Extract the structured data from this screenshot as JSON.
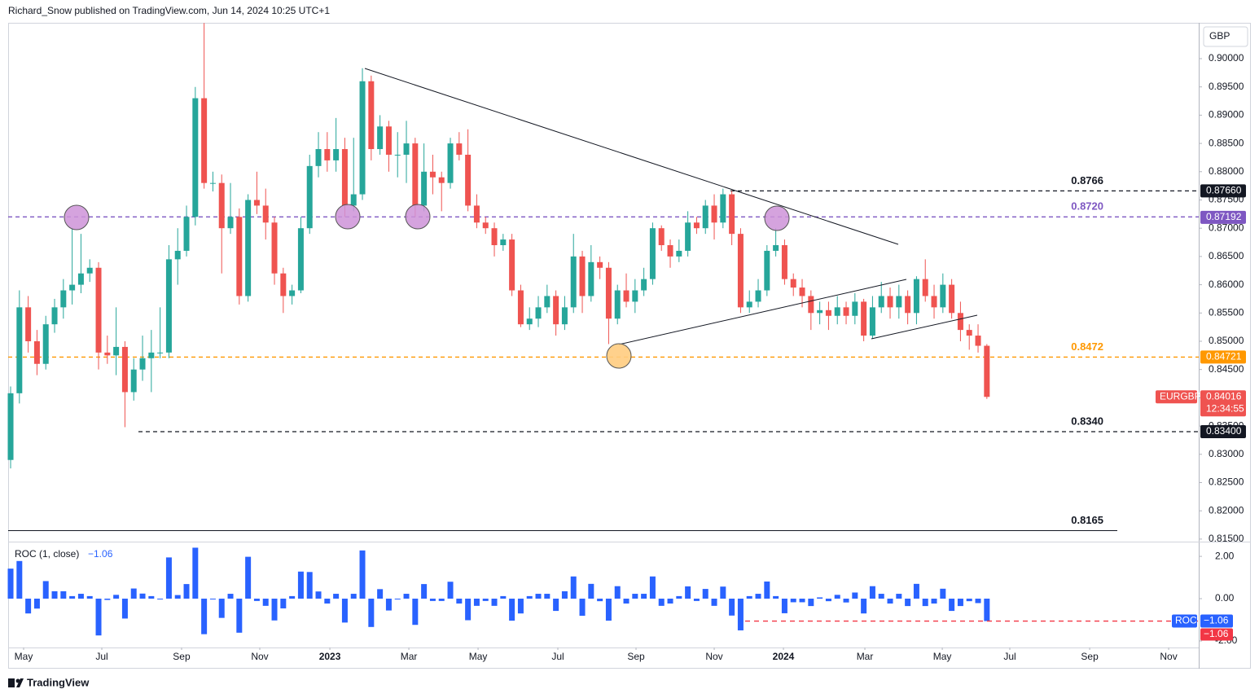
{
  "header": "Richard_Snow published on TradingView.com, Jun 14, 2024 10:25 UTC+1",
  "footer": "TradingView",
  "chart_data": [
    {
      "type": "candlestick",
      "currency": "GBP",
      "symbol": "EURGBP",
      "countdown": "12:34:55",
      "up_color": "#26a69a",
      "down_color": "#ef5350",
      "xlim": [
        -0.28,
        135.09
      ],
      "xticks": [
        {
          "value": 1.48,
          "label": "May"
        },
        {
          "value": 10.37,
          "label": "Jul"
        },
        {
          "value": 19.44,
          "label": "Sep"
        },
        {
          "value": 28.33,
          "label": "Nov"
        },
        {
          "value": 36.3,
          "label": "2023"
        },
        {
          "value": 45.28,
          "label": "Mar"
        },
        {
          "value": 53.15,
          "label": "May"
        },
        {
          "value": 62.22,
          "label": "Jul"
        },
        {
          "value": 71.11,
          "label": "Sep"
        },
        {
          "value": 80,
          "label": "Nov"
        },
        {
          "value": 87.87,
          "label": "2024"
        },
        {
          "value": 97.13,
          "label": "Mar"
        },
        {
          "value": 105.93,
          "label": "May"
        },
        {
          "value": 113.61,
          "label": "Jul"
        },
        {
          "value": 122.69,
          "label": "Sep"
        },
        {
          "value": 131.67,
          "label": "Nov"
        }
      ],
      "ylim": [
        0.81455,
        0.90634
      ],
      "yticks": [
        {
          "value": 0.9,
          "label": "0.90000"
        },
        {
          "value": 0.895,
          "label": "0.89500"
        },
        {
          "value": 0.89,
          "label": "0.89000"
        },
        {
          "value": 0.885,
          "label": "0.88500"
        },
        {
          "value": 0.88,
          "label": "0.88000"
        },
        {
          "value": 0.875,
          "label": "0.87500"
        },
        {
          "value": 0.87,
          "label": "0.87000"
        },
        {
          "value": 0.865,
          "label": "0.86500"
        },
        {
          "value": 0.86,
          "label": "0.86000"
        },
        {
          "value": 0.855,
          "label": "0.85500"
        },
        {
          "value": 0.85,
          "label": "0.85000"
        },
        {
          "value": 0.845,
          "label": "0.84500"
        },
        {
          "value": 0.84,
          "label": "0.84000"
        },
        {
          "value": 0.835,
          "label": "0.83500"
        },
        {
          "value": 0.83,
          "label": "0.83000"
        },
        {
          "value": 0.825,
          "label": "0.82500"
        },
        {
          "value": 0.82,
          "label": "0.82000"
        },
        {
          "value": 0.815,
          "label": "0.81500"
        }
      ],
      "open": [
        0.829,
        0.8408,
        0.856,
        0.85,
        0.846,
        0.853,
        0.856,
        0.859,
        0.86,
        0.862,
        0.863,
        0.848,
        0.8475,
        0.849,
        0.841,
        0.845,
        0.847,
        0.848,
        0.848,
        0.8645,
        0.866,
        0.872,
        0.893,
        0.878,
        0.878,
        0.87,
        0.872,
        0.858,
        0.875,
        0.874,
        0.871,
        0.862,
        0.858,
        0.859,
        0.87,
        0.881,
        0.884,
        0.882,
        0.884,
        0.874,
        0.876,
        0.896,
        0.884,
        0.888,
        0.883,
        0.883,
        0.885,
        0.874,
        0.88,
        0.879,
        0.878,
        0.885,
        0.883,
        0.874,
        0.871,
        0.87,
        0.867,
        0.868,
        0.859,
        0.853,
        0.854,
        0.856,
        0.858,
        0.853,
        0.856,
        0.865,
        0.858,
        0.864,
        0.863,
        0.854,
        0.859,
        0.857,
        0.859,
        0.861,
        0.87,
        0.867,
        0.865,
        0.866,
        0.871,
        0.87,
        0.874,
        0.871,
        0.876,
        0.869,
        0.856,
        0.857,
        0.859,
        0.866,
        0.867,
        0.861,
        0.8595,
        0.858,
        0.855,
        0.8555,
        0.8545,
        0.856,
        0.8545,
        0.857,
        0.851,
        0.856,
        0.858,
        0.856,
        0.858,
        0.855,
        0.861,
        0.858,
        0.856,
        0.86,
        0.855,
        0.852,
        0.851,
        0.8492
      ],
      "high": [
        0.842,
        0.859,
        0.858,
        0.852,
        0.8545,
        0.8575,
        0.861,
        0.87,
        0.869,
        0.8645,
        0.864,
        0.851,
        0.856,
        0.85,
        0.847,
        0.851,
        0.852,
        0.856,
        0.867,
        0.87,
        0.874,
        0.895,
        0.9063,
        0.88,
        0.8795,
        0.878,
        0.8735,
        0.876,
        0.88,
        0.877,
        0.872,
        0.863,
        0.86,
        0.872,
        0.883,
        0.887,
        0.887,
        0.8895,
        0.886,
        0.886,
        0.8983,
        0.897,
        0.89,
        0.889,
        0.887,
        0.889,
        0.886,
        0.885,
        0.883,
        0.88,
        0.886,
        0.887,
        0.8875,
        0.876,
        0.872,
        0.871,
        0.869,
        0.869,
        0.86,
        0.856,
        0.858,
        0.86,
        0.859,
        0.858,
        0.869,
        0.866,
        0.867,
        0.865,
        0.864,
        0.86,
        0.862,
        0.861,
        0.863,
        0.871,
        0.8705,
        0.868,
        0.868,
        0.873,
        0.872,
        0.875,
        0.876,
        0.877,
        0.8766,
        0.87,
        0.859,
        0.861,
        0.867,
        0.87,
        0.868,
        0.862,
        0.861,
        0.859,
        0.857,
        0.857,
        0.858,
        0.857,
        0.8585,
        0.8575,
        0.858,
        0.8605,
        0.8595,
        0.86,
        0.859,
        0.8615,
        0.8645,
        0.86,
        0.862,
        0.861,
        0.857,
        0.853,
        0.853,
        0.8495
      ],
      "low": [
        0.8275,
        0.839,
        0.848,
        0.844,
        0.845,
        0.8515,
        0.854,
        0.8565,
        0.8585,
        0.8605,
        0.845,
        0.846,
        0.844,
        0.8348,
        0.8395,
        0.843,
        0.841,
        0.847,
        0.847,
        0.86,
        0.865,
        0.8705,
        0.877,
        0.8765,
        0.862,
        0.869,
        0.8565,
        0.857,
        0.8725,
        0.868,
        0.86,
        0.855,
        0.8565,
        0.8585,
        0.869,
        0.879,
        0.88,
        0.88,
        0.872,
        0.873,
        0.875,
        0.882,
        0.883,
        0.88,
        0.879,
        0.878,
        0.872,
        0.873,
        0.876,
        0.873,
        0.877,
        0.882,
        0.873,
        0.87,
        0.869,
        0.865,
        0.866,
        0.858,
        0.8525,
        0.852,
        0.8525,
        0.855,
        0.851,
        0.852,
        0.855,
        0.855,
        0.857,
        0.861,
        0.8495,
        0.853,
        0.856,
        0.855,
        0.858,
        0.86,
        0.866,
        0.863,
        0.864,
        0.865,
        0.869,
        0.869,
        0.868,
        0.87,
        0.867,
        0.855,
        0.855,
        0.856,
        0.858,
        0.865,
        0.86,
        0.858,
        0.856,
        0.852,
        0.853,
        0.852,
        0.853,
        0.853,
        0.853,
        0.85,
        0.8505,
        0.855,
        0.854,
        0.854,
        0.853,
        0.853,
        0.857,
        0.854,
        0.855,
        0.854,
        0.85,
        0.8485,
        0.848,
        0.8398
      ],
      "close": [
        0.8408,
        0.856,
        0.85,
        0.846,
        0.853,
        0.856,
        0.859,
        0.86,
        0.862,
        0.863,
        0.848,
        0.8475,
        0.849,
        0.841,
        0.845,
        0.847,
        0.848,
        0.848,
        0.8645,
        0.866,
        0.872,
        0.893,
        0.878,
        0.878,
        0.87,
        0.872,
        0.858,
        0.875,
        0.874,
        0.871,
        0.862,
        0.858,
        0.859,
        0.87,
        0.881,
        0.884,
        0.882,
        0.884,
        0.874,
        0.876,
        0.896,
        0.884,
        0.888,
        0.883,
        0.883,
        0.885,
        0.874,
        0.88,
        0.879,
        0.878,
        0.885,
        0.883,
        0.874,
        0.871,
        0.87,
        0.867,
        0.868,
        0.859,
        0.853,
        0.854,
        0.856,
        0.858,
        0.853,
        0.856,
        0.865,
        0.858,
        0.864,
        0.863,
        0.854,
        0.859,
        0.857,
        0.859,
        0.861,
        0.87,
        0.867,
        0.865,
        0.866,
        0.871,
        0.87,
        0.874,
        0.871,
        0.876,
        0.869,
        0.856,
        0.857,
        0.859,
        0.866,
        0.867,
        0.861,
        0.8595,
        0.858,
        0.855,
        0.8555,
        0.8545,
        0.856,
        0.8545,
        0.857,
        0.851,
        0.856,
        0.858,
        0.856,
        0.858,
        0.855,
        0.861,
        0.858,
        0.856,
        0.86,
        0.855,
        0.852,
        0.851,
        0.8492,
        0.84016
      ],
      "last_price": 0.84016,
      "levels": [
        {
          "price": 0.8766,
          "badge": {
            "value": 0.8766,
            "label": "0.87660"
          },
          "color": "#131722",
          "line": "dashed"
        },
        {
          "price": {
            "value": 0.872,
            "label": "0.8720"
          },
          "badge": 0.87192,
          "color": "#7e57c2",
          "line": "dashed"
        },
        {
          "price": 0.8472,
          "badge": 0.84721,
          "color": "#ff9800",
          "line": "dashed"
        },
        {
          "price": {
            "value": 0.834,
            "label": "0.8340"
          },
          "badge": {
            "value": 0.834,
            "label": "0.83400"
          },
          "color": "#131722",
          "line": "dashed"
        },
        {
          "price": 0.8165,
          "color": "#131722",
          "line": "solid"
        }
      ]
    },
    {
      "type": "bar",
      "title": "ROC (1, close)",
      "ylim": [
        -2.31,
        2.62
      ],
      "yticks": [
        {
          "value": 2,
          "label": "2.00"
        },
        {
          "value": 0,
          "label": "0.00"
        },
        {
          "value": -2,
          "label": "-2.00"
        }
      ],
      "series": [
        {
          "name": "ROC",
          "color": "#2962ff",
          "values": [
            1.42,
            1.78,
            -0.7,
            -0.47,
            0.83,
            0.35,
            0.35,
            0.12,
            0.23,
            0.12,
            -1.74,
            -0.06,
            0.18,
            -0.94,
            0.48,
            0.24,
            0.12,
            0.0,
            1.95,
            0.17,
            0.69,
            2.41,
            -1.68,
            0.0,
            -0.91,
            0.23,
            -1.61,
            1.98,
            -0.11,
            -0.34,
            -1.03,
            -0.46,
            0.12,
            1.28,
            1.26,
            0.34,
            -0.23,
            0.23,
            -1.13,
            0.23,
            2.28,
            -1.34,
            0.45,
            -0.56,
            0.0,
            0.23,
            -1.24,
            0.69,
            -0.11,
            -0.11,
            0.8,
            -0.23,
            -1.02,
            -0.34,
            -0.11,
            -0.34,
            0.12,
            -1.04,
            -0.7,
            0.12,
            0.23,
            0.23,
            -0.58,
            0.35,
            1.05,
            -0.81,
            0.7,
            -0.12,
            -1.04,
            0.59,
            -0.23,
            0.23,
            0.23,
            1.05,
            -0.34,
            -0.23,
            0.12,
            0.58,
            -0.11,
            0.46,
            -0.34,
            0.57,
            -0.8,
            -1.5,
            0.12,
            0.23,
            0.81,
            0.12,
            -0.69,
            -0.17,
            -0.17,
            -0.35,
            0.06,
            -0.12,
            0.18,
            -0.18,
            0.29,
            -0.7,
            0.59,
            0.23,
            -0.23,
            0.23,
            -0.35,
            0.7,
            -0.35,
            -0.23,
            0.47,
            -0.58,
            -0.35,
            -0.12,
            -0.21,
            -1.06
          ]
        }
      ],
      "last": {
        "value": -1.06,
        "label": "−1.06"
      },
      "last_color": "#f23645"
    }
  ]
}
